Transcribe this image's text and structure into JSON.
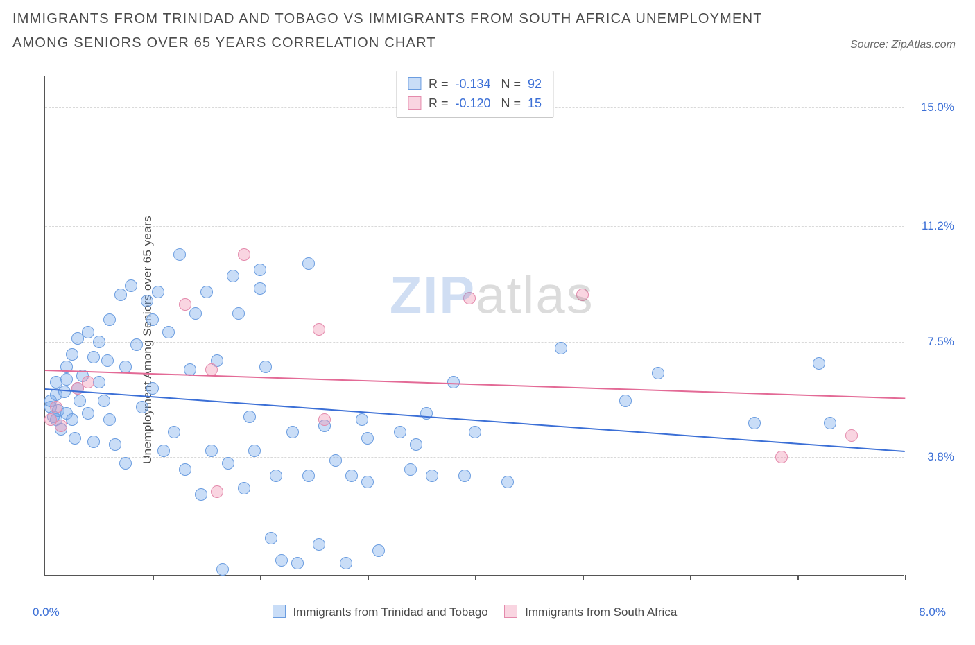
{
  "title": "IMMIGRANTS FROM TRINIDAD AND TOBAGO VS IMMIGRANTS FROM SOUTH AFRICA UNEMPLOYMENT AMONG SENIORS OVER 65 YEARS CORRELATION CHART",
  "source": "Source: ZipAtlas.com",
  "y_axis_label": "Unemployment Among Seniors over 65 years",
  "watermark": {
    "part1": "ZIP",
    "part2": "atlas"
  },
  "chart": {
    "type": "scatter",
    "background_color": "#ffffff",
    "grid_color": "#d9d9d9",
    "axis_color": "#555555",
    "label_color": "#4a4a4a",
    "tick_label_color": "#3b6fd6",
    "x_range": [
      0.0,
      8.0
    ],
    "y_range": [
      0.0,
      16.0
    ],
    "y_gridlines": [
      3.8,
      7.5,
      11.2,
      15.0
    ],
    "y_tick_labels": [
      "3.8%",
      "7.5%",
      "11.2%",
      "15.0%"
    ],
    "x_ticks": [
      1.0,
      2.0,
      3.0,
      4.0,
      5.0,
      6.0,
      7.0,
      8.0
    ],
    "x_corner_left": "0.0%",
    "x_corner_right": "8.0%",
    "point_radius": 9,
    "series": [
      {
        "key": "trinidad",
        "label": "Immigrants from Trinidad and Tobago",
        "fill": "rgba(120,170,235,0.40)",
        "stroke": "#6b9de0",
        "trend_color": "#3b6fd6",
        "R": "-0.134",
        "N": "92",
        "trend": {
          "y_at_xmin": 6.0,
          "y_at_xmax": 4.0
        },
        "points": [
          [
            0.05,
            5.4
          ],
          [
            0.05,
            5.6
          ],
          [
            0.08,
            5.1
          ],
          [
            0.1,
            5.0
          ],
          [
            0.1,
            5.8
          ],
          [
            0.1,
            6.2
          ],
          [
            0.12,
            5.3
          ],
          [
            0.15,
            4.7
          ],
          [
            0.18,
            5.9
          ],
          [
            0.2,
            5.2
          ],
          [
            0.2,
            6.3
          ],
          [
            0.2,
            6.7
          ],
          [
            0.25,
            7.1
          ],
          [
            0.25,
            5.0
          ],
          [
            0.28,
            4.4
          ],
          [
            0.3,
            7.6
          ],
          [
            0.3,
            6.0
          ],
          [
            0.32,
            5.6
          ],
          [
            0.35,
            6.4
          ],
          [
            0.4,
            7.8
          ],
          [
            0.4,
            5.2
          ],
          [
            0.45,
            7.0
          ],
          [
            0.45,
            4.3
          ],
          [
            0.5,
            7.5
          ],
          [
            0.5,
            6.2
          ],
          [
            0.55,
            5.6
          ],
          [
            0.58,
            6.9
          ],
          [
            0.6,
            8.2
          ],
          [
            0.6,
            5.0
          ],
          [
            0.65,
            4.2
          ],
          [
            0.7,
            9.0
          ],
          [
            0.75,
            6.7
          ],
          [
            0.75,
            3.6
          ],
          [
            0.8,
            9.3
          ],
          [
            0.85,
            7.4
          ],
          [
            0.9,
            5.4
          ],
          [
            0.95,
            8.8
          ],
          [
            1.0,
            8.2
          ],
          [
            1.0,
            6.0
          ],
          [
            1.05,
            9.1
          ],
          [
            1.1,
            4.0
          ],
          [
            1.15,
            7.8
          ],
          [
            1.2,
            4.6
          ],
          [
            1.25,
            10.3
          ],
          [
            1.3,
            3.4
          ],
          [
            1.35,
            6.6
          ],
          [
            1.4,
            8.4
          ],
          [
            1.45,
            2.6
          ],
          [
            1.5,
            9.1
          ],
          [
            1.55,
            4.0
          ],
          [
            1.6,
            6.9
          ],
          [
            1.65,
            0.2
          ],
          [
            1.7,
            3.6
          ],
          [
            1.75,
            9.6
          ],
          [
            1.8,
            8.4
          ],
          [
            1.85,
            2.8
          ],
          [
            1.9,
            5.1
          ],
          [
            1.95,
            4.0
          ],
          [
            2.0,
            9.2
          ],
          [
            2.0,
            9.8
          ],
          [
            2.05,
            6.7
          ],
          [
            2.1,
            1.2
          ],
          [
            2.15,
            3.2
          ],
          [
            2.2,
            0.5
          ],
          [
            2.3,
            4.6
          ],
          [
            2.35,
            0.4
          ],
          [
            2.45,
            10.0
          ],
          [
            2.45,
            3.2
          ],
          [
            2.55,
            1.0
          ],
          [
            2.6,
            4.8
          ],
          [
            2.7,
            3.7
          ],
          [
            2.8,
            0.4
          ],
          [
            2.85,
            3.2
          ],
          [
            2.95,
            5.0
          ],
          [
            3.0,
            4.4
          ],
          [
            3.0,
            3.0
          ],
          [
            3.1,
            0.8
          ],
          [
            3.3,
            4.6
          ],
          [
            3.4,
            3.4
          ],
          [
            3.45,
            4.2
          ],
          [
            3.55,
            5.2
          ],
          [
            3.6,
            3.2
          ],
          [
            3.8,
            6.2
          ],
          [
            3.9,
            3.2
          ],
          [
            4.0,
            4.6
          ],
          [
            4.3,
            3.0
          ],
          [
            4.8,
            7.3
          ],
          [
            5.4,
            5.6
          ],
          [
            5.7,
            6.5
          ],
          [
            6.6,
            4.9
          ],
          [
            7.2,
            6.8
          ],
          [
            7.3,
            4.9
          ]
        ]
      },
      {
        "key": "south_africa",
        "label": "Immigrants from South Africa",
        "fill": "rgba(240,150,180,0.40)",
        "stroke": "#e48aac",
        "trend_color": "#e36a96",
        "R": "-0.120",
        "N": "15",
        "trend": {
          "y_at_xmin": 6.6,
          "y_at_xmax": 5.7
        },
        "points": [
          [
            0.05,
            5.0
          ],
          [
            0.1,
            5.4
          ],
          [
            0.15,
            4.8
          ],
          [
            0.3,
            6.0
          ],
          [
            0.4,
            6.2
          ],
          [
            1.3,
            8.7
          ],
          [
            1.55,
            6.6
          ],
          [
            1.6,
            2.7
          ],
          [
            1.85,
            10.3
          ],
          [
            2.55,
            7.9
          ],
          [
            2.6,
            5.0
          ],
          [
            3.95,
            8.9
          ],
          [
            5.0,
            9.0
          ],
          [
            6.85,
            3.8
          ],
          [
            7.5,
            4.5
          ]
        ]
      }
    ]
  },
  "top_legend": {
    "r_label": "R =",
    "n_label": "N ="
  }
}
